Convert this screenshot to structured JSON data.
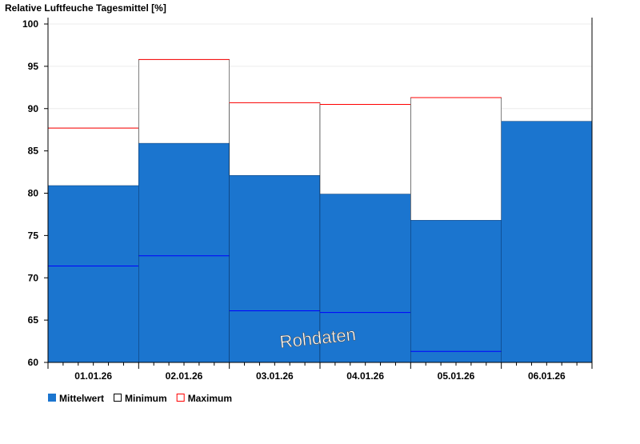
{
  "chart_data": {
    "type": "bar",
    "title": "Relative Luftfeuche Tagesmittel [%]",
    "categories": [
      "01.01.26",
      "02.01.26",
      "03.01.26",
      "04.01.26",
      "05.01.26",
      "06.01.26"
    ],
    "series": [
      {
        "name": "Mittelwert",
        "color": "#1b75cf",
        "values": [
          80.9,
          85.9,
          82.1,
          79.9,
          76.8,
          88.5
        ]
      },
      {
        "name": "Minimum",
        "color": "#0000ff",
        "values": [
          71.4,
          72.6,
          66.1,
          65.9,
          61.3,
          null
        ]
      },
      {
        "name": "Maximum",
        "color": "#ff0000",
        "values": [
          87.7,
          95.8,
          90.7,
          90.5,
          91.3,
          null
        ]
      }
    ],
    "ylim": [
      60,
      100
    ],
    "yticks": [
      60,
      65,
      70,
      75,
      80,
      85,
      90,
      95,
      100
    ],
    "grid": true,
    "legend": "bottom-left",
    "watermark": "Rohdaten"
  }
}
